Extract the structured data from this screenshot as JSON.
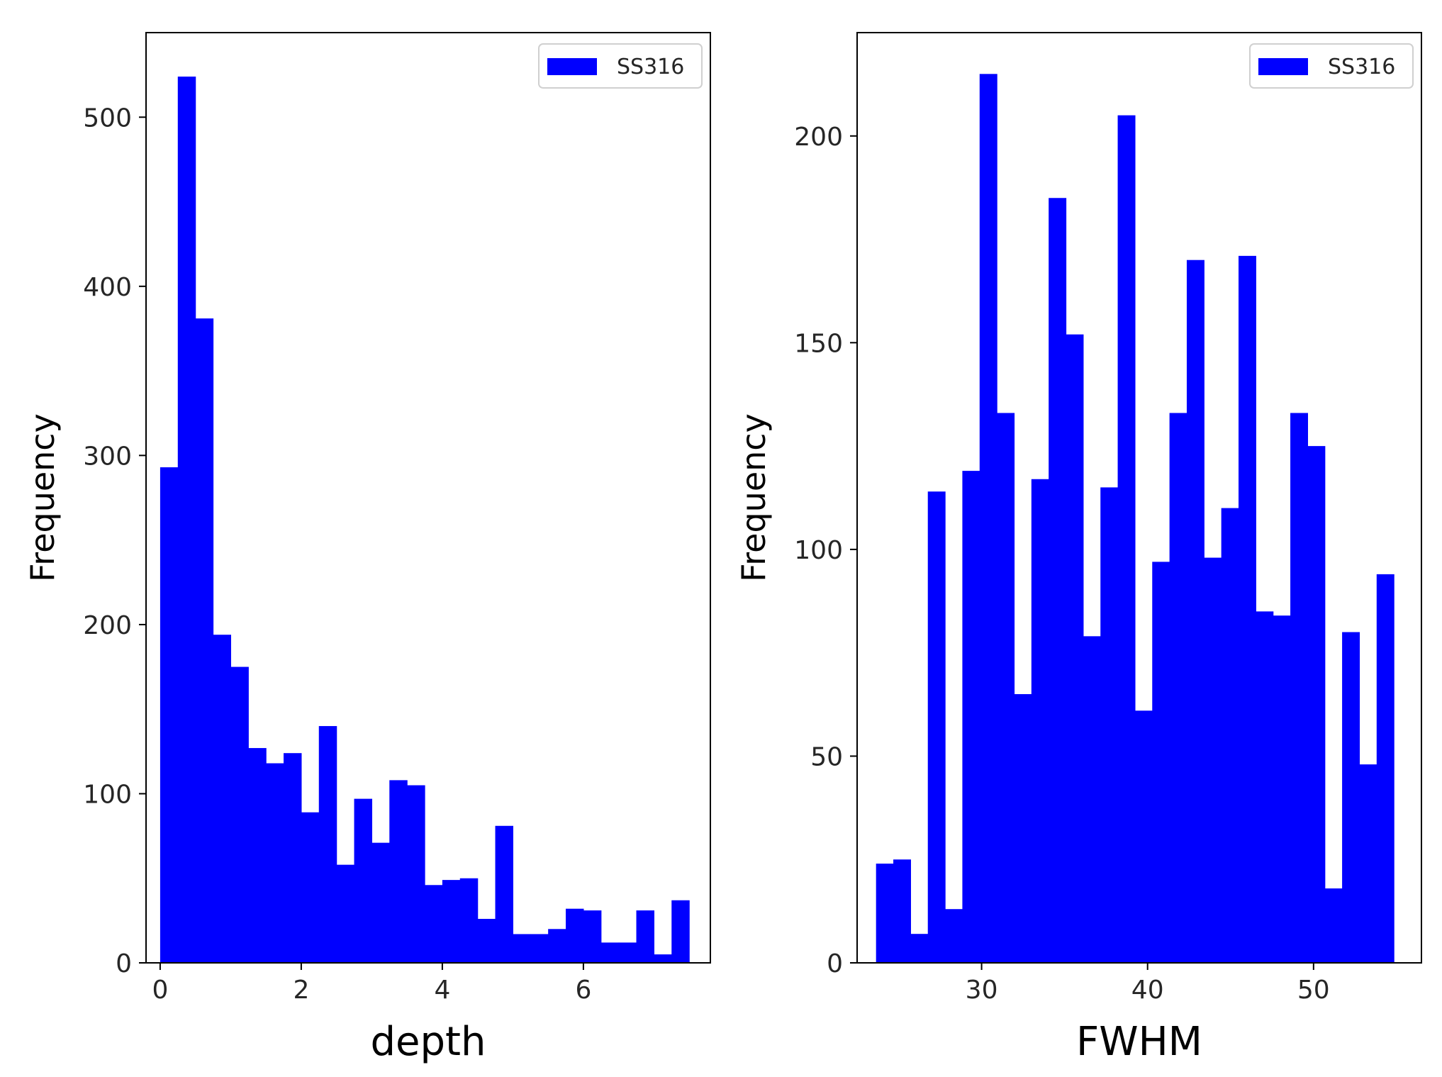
{
  "chart_data": [
    {
      "type": "bar",
      "title": "",
      "xlabel": "depth",
      "ylabel": "Frequency",
      "xlim": [
        -0.2,
        7.8
      ],
      "ylim": [
        0,
        550
      ],
      "xticks": [
        0,
        2,
        4,
        6
      ],
      "yticks": [
        0,
        100,
        200,
        300,
        400,
        500
      ],
      "grid": false,
      "legend_position": "top-right",
      "color": "#0000ff",
      "series": [
        {
          "name": "SS316",
          "bin_width": 0.25,
          "bins": [
            {
              "x": 0.125,
              "y": 293
            },
            {
              "x": 0.375,
              "y": 524
            },
            {
              "x": 0.625,
              "y": 381
            },
            {
              "x": 0.875,
              "y": 194
            },
            {
              "x": 1.125,
              "y": 175
            },
            {
              "x": 1.375,
              "y": 127
            },
            {
              "x": 1.625,
              "y": 118
            },
            {
              "x": 1.875,
              "y": 124
            },
            {
              "x": 2.125,
              "y": 89
            },
            {
              "x": 2.375,
              "y": 140
            },
            {
              "x": 2.625,
              "y": 58
            },
            {
              "x": 2.875,
              "y": 97
            },
            {
              "x": 3.125,
              "y": 71
            },
            {
              "x": 3.375,
              "y": 108
            },
            {
              "x": 3.625,
              "y": 105
            },
            {
              "x": 3.875,
              "y": 46
            },
            {
              "x": 4.125,
              "y": 49
            },
            {
              "x": 4.375,
              "y": 50
            },
            {
              "x": 4.625,
              "y": 26
            },
            {
              "x": 4.875,
              "y": 81
            },
            {
              "x": 5.125,
              "y": 17
            },
            {
              "x": 5.375,
              "y": 17
            },
            {
              "x": 5.625,
              "y": 20
            },
            {
              "x": 5.875,
              "y": 32
            },
            {
              "x": 6.125,
              "y": 31
            },
            {
              "x": 6.375,
              "y": 12
            },
            {
              "x": 6.625,
              "y": 12
            },
            {
              "x": 6.875,
              "y": 31
            },
            {
              "x": 7.125,
              "y": 5
            },
            {
              "x": 7.375,
              "y": 37
            }
          ]
        }
      ]
    },
    {
      "type": "bar",
      "title": "",
      "xlabel": "FWHM",
      "ylabel": "Frequency",
      "xlim": [
        22.5,
        56.5
      ],
      "ylim": [
        0,
        225
      ],
      "xticks": [
        30,
        40,
        50
      ],
      "yticks": [
        0,
        50,
        100,
        150,
        200
      ],
      "grid": false,
      "legend_position": "top-right",
      "color": "#0000ff",
      "series": [
        {
          "name": "SS316",
          "bin_width": 1.04,
          "bins": [
            {
              "x": 24.16,
              "y": 24
            },
            {
              "x": 25.2,
              "y": 25
            },
            {
              "x": 26.24,
              "y": 7
            },
            {
              "x": 27.28,
              "y": 114
            },
            {
              "x": 28.32,
              "y": 13
            },
            {
              "x": 29.36,
              "y": 119
            },
            {
              "x": 30.4,
              "y": 215
            },
            {
              "x": 31.44,
              "y": 133
            },
            {
              "x": 32.48,
              "y": 65
            },
            {
              "x": 33.52,
              "y": 117
            },
            {
              "x": 34.56,
              "y": 185
            },
            {
              "x": 35.6,
              "y": 152
            },
            {
              "x": 36.64,
              "y": 79
            },
            {
              "x": 37.68,
              "y": 115
            },
            {
              "x": 38.72,
              "y": 205
            },
            {
              "x": 39.76,
              "y": 61
            },
            {
              "x": 40.8,
              "y": 97
            },
            {
              "x": 41.84,
              "y": 133
            },
            {
              "x": 42.88,
              "y": 170
            },
            {
              "x": 43.92,
              "y": 98
            },
            {
              "x": 44.96,
              "y": 110
            },
            {
              "x": 46.0,
              "y": 171
            },
            {
              "x": 47.04,
              "y": 85
            },
            {
              "x": 48.08,
              "y": 84
            },
            {
              "x": 49.12,
              "y": 133
            },
            {
              "x": 50.16,
              "y": 125
            },
            {
              "x": 51.2,
              "y": 18
            },
            {
              "x": 52.24,
              "y": 80
            },
            {
              "x": 53.28,
              "y": 48
            },
            {
              "x": 54.32,
              "y": 94
            }
          ]
        }
      ]
    }
  ]
}
